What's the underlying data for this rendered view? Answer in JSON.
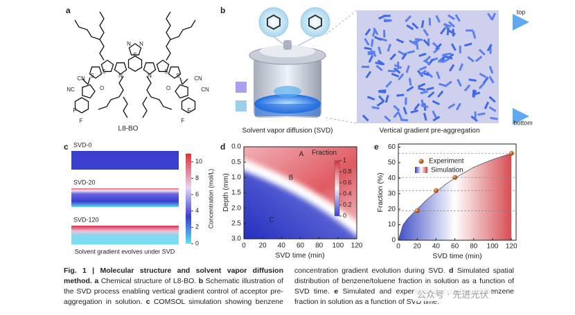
{
  "panel_a": {
    "letter": "a",
    "molecule": "L8-BO",
    "atoms": [
      "CN",
      "NC",
      "O",
      "F",
      "F",
      "S",
      "S",
      "N",
      "N",
      "N",
      "N",
      "S",
      "S",
      "S",
      "O",
      "CN",
      "CN",
      "F",
      "F"
    ]
  },
  "panel_b": {
    "letter": "b",
    "left_caption": "Solvent vapor diffusion (SVD)",
    "right_caption": "Vertical gradient pre-aggregation",
    "top": "top",
    "bottom": "bottom"
  },
  "panel_c": {
    "letter": "c",
    "samples": [
      "SVD-0",
      "SVD-20",
      "SVD-120"
    ],
    "colorbar_label": "Concentration (mol/L)",
    "colorbar_lim": [
      0,
      11
    ],
    "colorbar_ticks": [
      0,
      2,
      4,
      6,
      8,
      10
    ],
    "caption": "Solvent gradient evolves under SVD"
  },
  "panel_d": {
    "letter": "d",
    "type": "heatmap",
    "xlabel": "SVD time (min)",
    "ylabel": "Depth (mm)",
    "xlim": [
      0,
      120
    ],
    "ylim": [
      0,
      3
    ],
    "xticks": [
      0,
      20,
      40,
      60,
      80,
      100,
      120
    ],
    "yticks": [
      {
        "value": 0,
        "label": "0.0"
      },
      0.5,
      {
        "value": 1,
        "label": "1.0"
      },
      1.5,
      {
        "value": 2,
        "label": "2.0"
      },
      2.5,
      {
        "value": 3,
        "label": "3.0"
      }
    ],
    "annotations": [
      "A",
      "B",
      "C"
    ],
    "colorbar_title": "Fraction",
    "colorbar_lim": [
      0,
      1
    ],
    "colorbar_ticks": [
      0,
      0.2,
      0.4,
      0.6,
      0.8,
      1
    ]
  },
  "panel_e": {
    "letter": "e",
    "type": "scatter",
    "xlabel": "SVD time (min)",
    "ylabel": "Fraction (%)",
    "xlim": [
      0,
      125
    ],
    "ylim": [
      0,
      62
    ],
    "xticks": [
      0,
      20,
      40,
      60,
      80,
      100,
      120
    ],
    "yticks": [
      0,
      10,
      20,
      30,
      40,
      50,
      60
    ],
    "series": [
      {
        "name": "Experiment",
        "color": "#c8641e",
        "x": [
          20,
          40,
          60,
          120
        ],
        "values": [
          19,
          32,
          40.5,
          56
        ]
      },
      {
        "name": "Simulation",
        "color": "#555555",
        "x": [
          0,
          5,
          10,
          20,
          30,
          40,
          50,
          60,
          80,
          100,
          120
        ],
        "values": [
          0,
          10,
          14,
          20,
          26,
          31,
          36,
          40,
          47,
          52,
          56
        ]
      }
    ]
  },
  "caption": {
    "title": "Fig. 1 | Molecular structure and solvent vapor diffusion method.",
    "parts": [
      {
        "letter": "a",
        "text": "Chemical structure of L8-BO."
      },
      {
        "letter": "b",
        "text": "Schematic illustration of the SVD process enabling vertical gradient control of acceptor pre-aggregation in solution."
      },
      {
        "letter": "c",
        "text": "COMSOL simulation showing benzene concentration gradient evolution during SVD."
      },
      {
        "letter": "d",
        "text": "Simulated spatial distribution of benzene/toluene fraction in solution as a function of SVD time."
      },
      {
        "letter": "e",
        "text": "Simulated and experimental evolution of benzene fraction in solution as a function of SVD time."
      }
    ]
  },
  "watermark": "公众号 · 先进光伏"
}
